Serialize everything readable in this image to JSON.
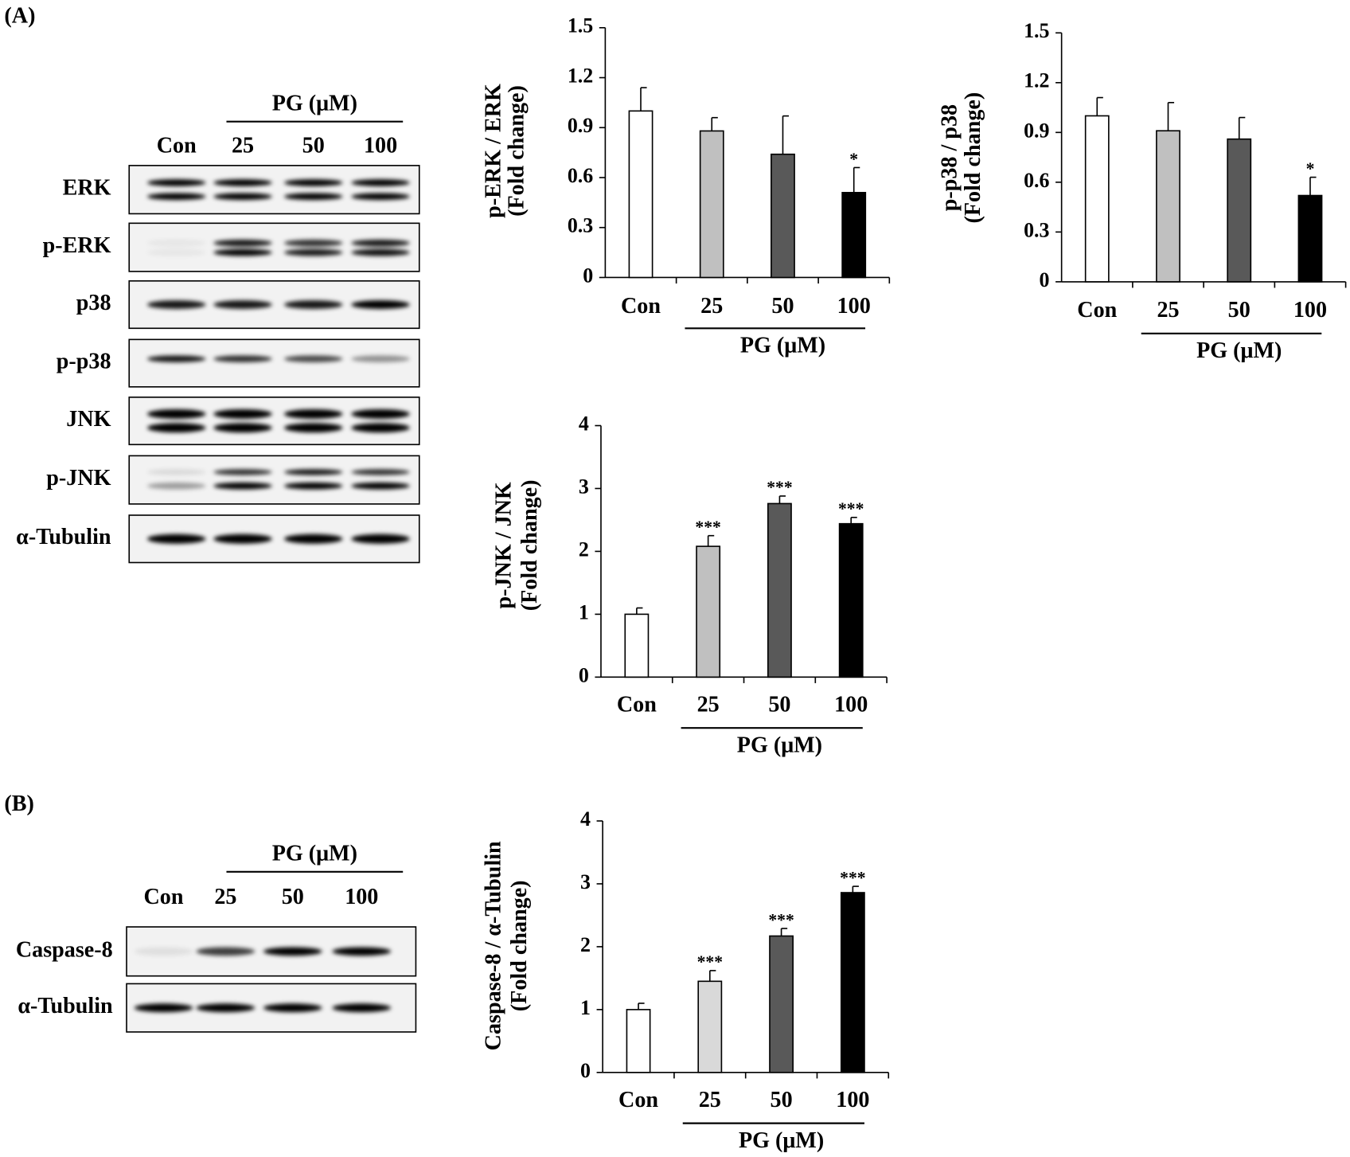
{
  "panel_labels": [
    "(A)",
    "(B)"
  ],
  "blots": [
    {
      "group_label": "PG (μM)",
      "lanes": [
        "Con",
        "25",
        "50",
        "100"
      ],
      "rows": [
        "ERK",
        "p-ERK",
        "p38",
        "p-p38",
        "JNK",
        "p-JNK",
        "α-Tubulin"
      ]
    },
    {
      "group_label": "PG (μM)",
      "lanes": [
        "Con",
        "25",
        "50",
        "100"
      ],
      "rows": [
        "Caspase-8",
        "α-Tubulin"
      ]
    }
  ],
  "chart_data": [
    {
      "type": "bar",
      "y_label": [
        "p-ERK / ERK",
        "(Fold change)"
      ],
      "categories": [
        "Con",
        "25",
        "50",
        "100"
      ],
      "group_label": "PG (μM)",
      "values": [
        1.0,
        0.88,
        0.74,
        0.51
      ],
      "errors": [
        0.14,
        0.08,
        0.23,
        0.15
      ],
      "annotations": [
        null,
        null,
        null,
        "*"
      ],
      "colors": [
        "#ffffff",
        "#c0c0c0",
        "#595959",
        "#000000"
      ],
      "ylim": [
        0,
        1.5
      ],
      "yticks": [
        0,
        0.3,
        0.6,
        0.9,
        1.2,
        1.5
      ]
    },
    {
      "type": "bar",
      "y_label": [
        "p-p38 / p38",
        "(Fold change)"
      ],
      "categories": [
        "Con",
        "25",
        "50",
        "100"
      ],
      "group_label": "PG (μM)",
      "values": [
        1.0,
        0.91,
        0.86,
        0.52
      ],
      "errors": [
        0.11,
        0.17,
        0.13,
        0.11
      ],
      "annotations": [
        null,
        null,
        null,
        "*"
      ],
      "colors": [
        "#ffffff",
        "#c0c0c0",
        "#595959",
        "#000000"
      ],
      "ylim": [
        0,
        1.5
      ],
      "yticks": [
        0,
        0.3,
        0.6,
        0.9,
        1.2,
        1.5
      ]
    },
    {
      "type": "bar",
      "y_label": [
        "p-JNK / JNK",
        "(Fold change)"
      ],
      "categories": [
        "Con",
        "25",
        "50",
        "100"
      ],
      "group_label": "PG (μM)",
      "values": [
        1.0,
        2.08,
        2.76,
        2.44
      ],
      "errors": [
        0.1,
        0.17,
        0.12,
        0.1
      ],
      "annotations": [
        null,
        "***",
        "***",
        "***"
      ],
      "colors": [
        "#ffffff",
        "#c0c0c0",
        "#595959",
        "#000000"
      ],
      "ylim": [
        0,
        4
      ],
      "yticks": [
        0,
        1,
        2,
        3,
        4
      ]
    },
    {
      "type": "bar",
      "y_label": [
        "Caspase-8 / α-Tubulin",
        "(Fold change)"
      ],
      "categories": [
        "Con",
        "25",
        "50",
        "100"
      ],
      "group_label": "PG (μM)",
      "values": [
        1.0,
        1.45,
        2.17,
        2.86
      ],
      "errors": [
        0.1,
        0.17,
        0.12,
        0.1
      ],
      "annotations": [
        null,
        "***",
        "***",
        "***"
      ],
      "colors": [
        "#ffffff",
        "#d9d9d9",
        "#595959",
        "#000000"
      ],
      "ylim": [
        0,
        4
      ],
      "yticks": [
        0,
        1,
        2,
        3,
        4
      ]
    }
  ]
}
